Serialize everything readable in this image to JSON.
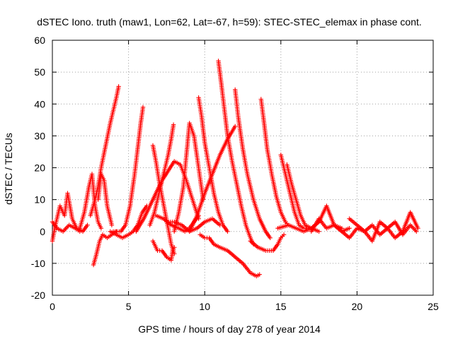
{
  "chart_data": {
    "type": "scatter",
    "title": "dSTEC Iono. truth (maw1, Lon=62, Lat=-67, h=59): STEC-STEC_elemax in phase cont.",
    "xlabel": "GPS time / hours of day 278 of year 2014",
    "ylabel": "dSTEC  / TECUs",
    "xlim": [
      0,
      25
    ],
    "ylim": [
      -20,
      60
    ],
    "xticks": [
      0,
      5,
      10,
      15,
      20,
      25
    ],
    "yticks": [
      -20,
      -10,
      0,
      10,
      20,
      30,
      40,
      50,
      60
    ],
    "grid": true,
    "marker": "plus",
    "color": "#ff0000",
    "series": [
      {
        "x": [
          0.0,
          0.2,
          0.5,
          0.8,
          1.0,
          1.3,
          1.6,
          2.0,
          2.3
        ],
        "y": [
          -3,
          2,
          8,
          5,
          12,
          4,
          1,
          0,
          2
        ]
      },
      {
        "x": [
          0.0,
          0.3,
          0.7,
          1.1,
          1.5,
          1.8
        ],
        "y": [
          3,
          1,
          0,
          2,
          1,
          0
        ]
      },
      {
        "x": [
          1.8,
          2.1,
          2.4,
          2.6,
          2.8,
          3.0,
          3.2
        ],
        "y": [
          1,
          6,
          14,
          18,
          8,
          3,
          1
        ]
      },
      {
        "x": [
          2.5,
          2.8,
          3.0,
          3.2,
          3.5,
          3.8,
          4.0,
          4.2,
          4.35
        ],
        "y": [
          5,
          10,
          14,
          20,
          27,
          34,
          38,
          42,
          45.5
        ]
      },
      {
        "x": [
          3.0,
          3.2,
          3.4,
          3.6,
          3.9
        ],
        "y": [
          10,
          18,
          16,
          8,
          2
        ]
      },
      {
        "x": [
          2.7,
          2.9,
          3.1,
          3.3,
          3.6,
          3.9,
          4.2
        ],
        "y": [
          -10.5,
          -7,
          -3,
          -1,
          -2,
          -1,
          0
        ]
      },
      {
        "x": [
          4.0,
          4.5,
          4.8,
          5.1,
          5.4,
          5.6,
          5.8,
          5.95
        ],
        "y": [
          0,
          0,
          2,
          8,
          18,
          26,
          34,
          39
        ]
      },
      {
        "x": [
          3.8,
          4.2,
          4.6,
          5.0,
          5.3,
          5.6,
          5.9,
          6.2
        ],
        "y": [
          0,
          -1,
          -2,
          -1,
          0,
          2,
          6,
          8
        ]
      },
      {
        "x": [
          6.6,
          6.8,
          7.0,
          7.2,
          7.4,
          7.6,
          7.8,
          8.0
        ],
        "y": [
          27,
          22,
          16,
          11,
          6,
          1,
          -4,
          -7
        ]
      },
      {
        "x": [
          6.6,
          6.9,
          7.2,
          7.5,
          7.8,
          7.9,
          8.0
        ],
        "y": [
          -3,
          -6,
          -6,
          -8,
          -9,
          -6,
          -5
        ]
      },
      {
        "x": [
          6.4,
          6.7,
          7.0,
          7.3,
          7.6,
          7.8,
          7.95
        ],
        "y": [
          2,
          6,
          12,
          18,
          24,
          29,
          33.5
        ]
      },
      {
        "x": [
          5.5,
          6.0,
          6.4,
          6.8,
          7.2,
          7.6,
          8.0,
          8.4,
          8.8,
          9.2,
          9.6
        ],
        "y": [
          0,
          4,
          8,
          12,
          16,
          19,
          22,
          21,
          16,
          10,
          4
        ]
      },
      {
        "x": [
          6.8,
          7.3,
          7.8,
          8.3,
          8.7,
          9.0,
          9.3,
          9.6
        ],
        "y": [
          5,
          4,
          2,
          1,
          0,
          1,
          3,
          5
        ]
      },
      {
        "x": [
          8.0,
          8.3,
          8.6,
          8.8,
          9.0,
          9.3,
          9.6,
          9.9
        ],
        "y": [
          0,
          6,
          14,
          24,
          34,
          30,
          20,
          10
        ]
      },
      {
        "x": [
          7.5,
          8.0,
          8.5,
          9.0,
          9.5,
          10.0,
          10.5,
          11.0
        ],
        "y": [
          3,
          3,
          2,
          0,
          1,
          3,
          4,
          2
        ]
      },
      {
        "x": [
          9.6,
          9.8,
          10.0,
          10.3,
          10.6,
          10.9,
          11.2,
          11.5
        ],
        "y": [
          42,
          36,
          28,
          20,
          12,
          6,
          2,
          0
        ]
      },
      {
        "x": [
          9.7,
          10.0,
          10.3,
          10.6,
          11.0,
          11.5,
          12.0,
          12.5,
          13.0,
          13.4,
          13.6
        ],
        "y": [
          -1,
          -2,
          -2,
          -4,
          -5,
          -6,
          -8,
          -10,
          -13,
          -14,
          -13.5
        ]
      },
      {
        "x": [
          9.0,
          9.5,
          10.0,
          10.5,
          11.0,
          11.5,
          12.0
        ],
        "y": [
          0,
          5,
          12,
          18,
          24,
          29,
          33
        ]
      },
      {
        "x": [
          10.9,
          11.1,
          11.3,
          11.5,
          11.8,
          12.1,
          12.4,
          12.7,
          13.0,
          13.2
        ],
        "y": [
          53.5,
          46,
          38,
          30,
          22,
          15,
          8,
          2,
          -2,
          -4
        ]
      },
      {
        "x": [
          12.0,
          12.2,
          12.5,
          12.8,
          13.2,
          13.6,
          14.0,
          14.3
        ],
        "y": [
          44.5,
          36,
          26,
          18,
          10,
          4,
          0,
          -2
        ]
      },
      {
        "x": [
          13.7,
          13.9,
          14.1,
          14.4,
          14.7,
          15.0,
          15.3,
          15.5
        ],
        "y": [
          41.5,
          34,
          26,
          18,
          11,
          6,
          3,
          2
        ]
      },
      {
        "x": [
          13.0,
          13.5,
          14.0,
          14.5,
          14.8,
          15.0,
          15.2
        ],
        "y": [
          -3,
          -5,
          -6,
          -6,
          -4,
          -2,
          -1
        ]
      },
      {
        "x": [
          15.0,
          15.3,
          15.6,
          15.9,
          16.2,
          16.5,
          16.8
        ],
        "y": [
          24,
          18,
          12,
          6,
          2,
          1,
          1
        ]
      },
      {
        "x": [
          15.4,
          15.7,
          16.0,
          16.3,
          16.6,
          17.0,
          17.5
        ],
        "y": [
          21,
          15,
          10,
          5,
          2,
          1,
          0
        ]
      },
      {
        "x": [
          14.8,
          15.5,
          16.0,
          16.5,
          17.0,
          17.5,
          18.0,
          18.5,
          19.0
        ],
        "y": [
          1,
          2,
          1,
          0,
          1,
          3,
          8,
          2,
          1
        ]
      },
      {
        "x": [
          18.5,
          19.0,
          19.5,
          20.0,
          20.5,
          21.0,
          21.5,
          22.0,
          22.5,
          23.0,
          23.5,
          24.0
        ],
        "y": [
          2,
          0,
          -2,
          1,
          0,
          -3,
          3,
          1,
          -2,
          0,
          6,
          1
        ]
      },
      {
        "x": [
          19.5,
          20.0,
          20.5,
          21.0,
          21.5,
          22.0,
          22.5,
          23.0,
          23.5,
          23.9
        ],
        "y": [
          4,
          2,
          0,
          2,
          -1,
          1,
          3,
          -1,
          2,
          0
        ]
      },
      {
        "x": [
          17.0,
          17.5,
          18.0,
          18.5,
          19.0,
          19.5
        ],
        "y": [
          0,
          4,
          1,
          2,
          0,
          1
        ]
      }
    ]
  }
}
